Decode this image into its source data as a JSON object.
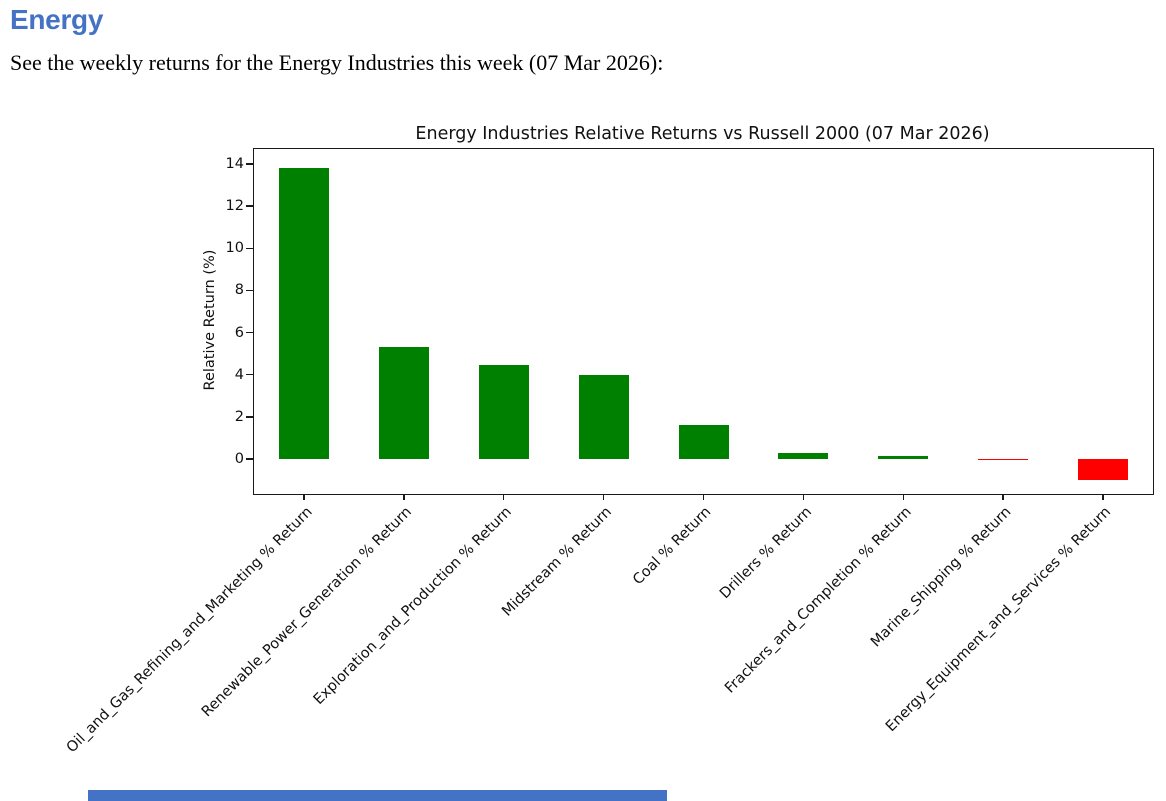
{
  "page": {
    "background": "#ffffff",
    "bottom_partial_bar_color": "#4472C4"
  },
  "document": {
    "heading": "Energy",
    "heading_color": "#4472C4",
    "intro_text": "See the weekly returns for the Energy Industries this week (07 Mar 2026):"
  },
  "chart_data": {
    "type": "bar",
    "title": "Energy Industries Relative Returns vs Russell 2000 (07 Mar 2026)",
    "xlabel": "",
    "ylabel": "Relative Return (%)",
    "categories": [
      "Oil_and_Gas_Refining_and_Marketing % Return",
      "Renewable_Power_Generation % Return",
      "Exploration_and_Production % Return",
      "Midstream % Return",
      "Coal % Return",
      "Drillers % Return",
      "Frackers_and_Completion % Return",
      "Marine_Shipping % Return",
      "Energy_Equipment_and_Services % Return"
    ],
    "values": [
      13.8,
      5.3,
      4.45,
      4.0,
      1.6,
      0.3,
      0.15,
      -0.05,
      -1.0
    ],
    "positive_color": "#008000",
    "negative_color": "#ff0000",
    "yticks": [
      0,
      2,
      4,
      6,
      8,
      10,
      12,
      14
    ],
    "ylim": [
      -1.66,
      14.71
    ],
    "xtick_rotation": 45,
    "grid": false,
    "legend": "none"
  }
}
